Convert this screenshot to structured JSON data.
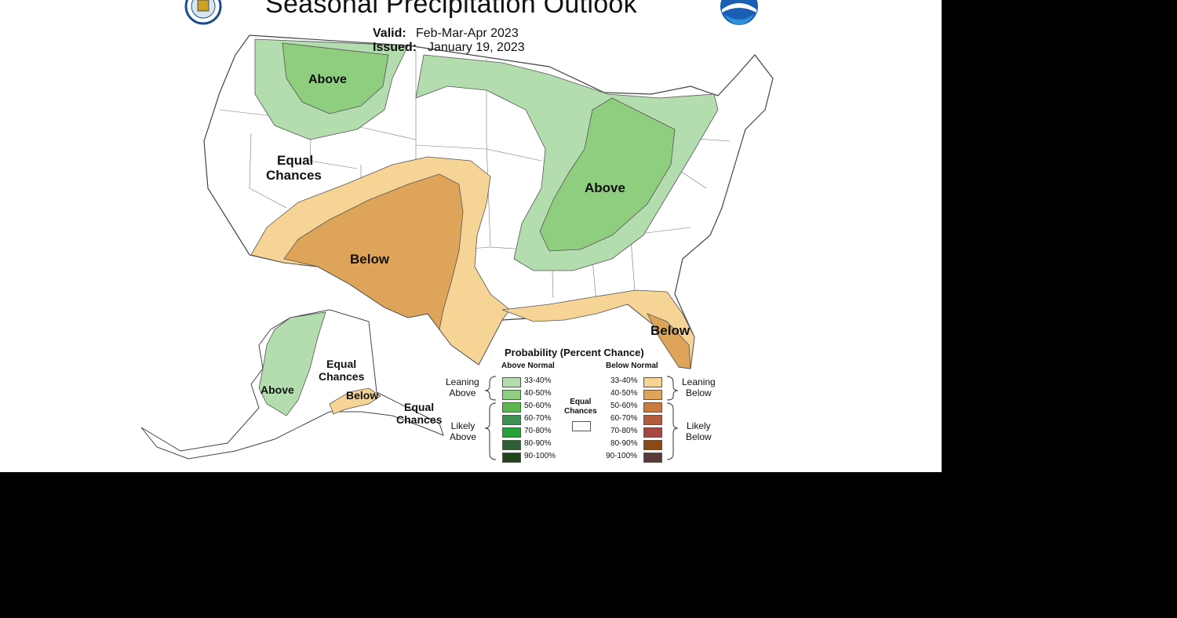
{
  "title": "Seasonal Precipitation Outlook",
  "valid": {
    "label": "Valid:",
    "value": "Feb-Mar-Apr 2023"
  },
  "issued": {
    "label": "Issued:",
    "value": "January 19, 2023"
  },
  "logos": {
    "left": "commerce-seal-icon",
    "right": "noaa-logo-icon"
  },
  "regions": {
    "north_above": "Above",
    "west_equal_1": "Equal",
    "west_equal_2": "Chances",
    "southwest_below": "Below",
    "east_above": "Above",
    "florida_below": "Below",
    "ak_equal_1": "Equal",
    "ak_equal_2": "Chances",
    "ak_above": "Above",
    "ak_below": "Below",
    "ak_se_equal_1": "Equal",
    "ak_se_equal_2": "Chances"
  },
  "legend": {
    "heading": "Probability (Percent Chance)",
    "above_header": "Above Normal",
    "below_header": "Below Normal",
    "leaning_above_1": "Leaning",
    "leaning_above_2": "Above",
    "likely_above_1": "Likely",
    "likely_above_2": "Above",
    "leaning_below_1": "Leaning",
    "leaning_below_2": "Below",
    "likely_below_1": "Likely",
    "likely_below_2": "Below",
    "equal_1": "Equal",
    "equal_2": "Chances",
    "above_ranges": [
      "33-40%",
      "40-50%",
      "50-60%",
      "60-70%",
      "70-80%",
      "80-90%",
      "90-100%"
    ],
    "below_ranges": [
      "33-40%",
      "40-50%",
      "50-60%",
      "60-70%",
      "70-80%",
      "80-90%",
      "90-100%"
    ],
    "above_colors": [
      "#b3dcaf",
      "#8fcd7f",
      "#5cb84d",
      "#3f8f55",
      "#27a13a",
      "#2d5e34",
      "#23431d"
    ],
    "below_colors": [
      "#f6d495",
      "#dea55a",
      "#c87a40",
      "#b35a3a",
      "#a5483f",
      "#8a4a16",
      "#5a3a3a"
    ]
  },
  "colors": {
    "above_light": "#b3dcaf",
    "above_mid": "#8fcd7f",
    "below_light": "#f6d495",
    "below_mid": "#dea55a"
  }
}
